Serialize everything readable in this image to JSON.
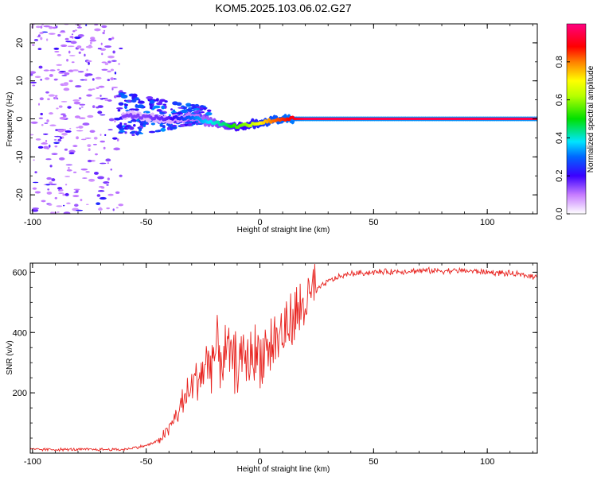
{
  "title": "KOM5.2025.103.06.02.G27",
  "chart_data": [
    {
      "type": "heatmap",
      "title": "KOM5.2025.103.06.02.G27",
      "xlabel": "Height of straight line (km)",
      "ylabel": "Frequency (Hz)",
      "xlim": [
        -101,
        122
      ],
      "ylim": [
        -25,
        25
      ],
      "xticks": [
        -100,
        -50,
        0,
        50,
        100
      ],
      "yticks": [
        -20,
        -10,
        0,
        10,
        20
      ],
      "grid": false,
      "colorbar": {
        "label": "Normalized spectral amplitude",
        "range": [
          0.0,
          1.0
        ],
        "ticks": [
          "0.0",
          "0.2",
          "0.4",
          "0.6",
          "0.8"
        ],
        "colormap": "rainbow (white-violet-blue-cyan-green-yellow-red-magenta)"
      },
      "ridge": {
        "description": "main spectral line near 0 Hz",
        "points": [
          [
            -60,
            1.0
          ],
          [
            -50,
            0.5
          ],
          [
            -40,
            0.0
          ],
          [
            -30,
            0.5
          ],
          [
            -25,
            -0.5
          ],
          [
            -20,
            -1.0
          ],
          [
            -15,
            -1.5
          ],
          [
            -10,
            -2.0
          ],
          [
            -5,
            -1.5
          ],
          [
            0,
            -1.0
          ],
          [
            5,
            -0.5
          ],
          [
            10,
            0.0
          ],
          [
            15,
            0.0
          ],
          [
            20,
            0.0
          ],
          [
            122,
            0.0
          ]
        ],
        "amplitude": [
          0.15,
          0.15,
          0.18,
          0.3,
          0.35,
          0.4,
          0.45,
          0.55,
          0.6,
          0.7,
          0.8,
          0.85,
          0.9,
          0.95,
          0.95
        ]
      }
    },
    {
      "type": "line",
      "xlabel": "Height of straight line (km)",
      "ylabel": "SNR (v/v)",
      "xlim": [
        -101,
        122
      ],
      "ylim": [
        0,
        630
      ],
      "xticks": [
        -100,
        -50,
        0,
        50,
        100
      ],
      "yticks": [
        200,
        400,
        600
      ],
      "grid": false,
      "color": "#e8231f",
      "series": [
        {
          "envelope_x": [
            -101,
            -60,
            -50,
            -45,
            -40,
            -35,
            -30,
            -25,
            -20,
            -15,
            -10,
            -5,
            0,
            5,
            10,
            15,
            20,
            25,
            30,
            35,
            40,
            50,
            60,
            70,
            80,
            90,
            100,
            110,
            122
          ],
          "envelope_y": [
            12,
            12,
            25,
            40,
            80,
            150,
            220,
            280,
            330,
            330,
            300,
            320,
            330,
            360,
            400,
            440,
            500,
            540,
            570,
            585,
            595,
            600,
            602,
            605,
            605,
            605,
            600,
            595,
            585
          ]
        }
      ]
    }
  ]
}
